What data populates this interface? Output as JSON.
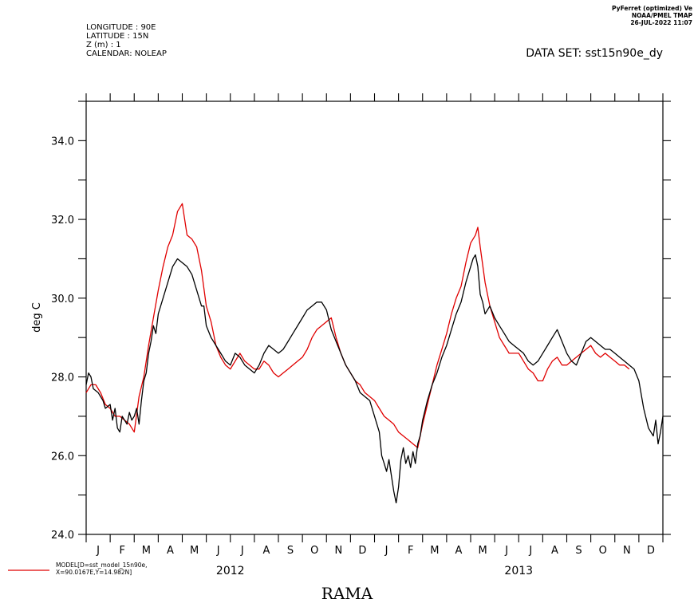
{
  "header": {
    "meta_lines": [
      "LONGITUDE : 90E",
      "LATITUDE : 15N",
      "Z (m) : 1",
      "CALENDAR: NOLEAP"
    ],
    "dataset": "DATA SET: sst15n90e_dy",
    "credit_lines": [
      "PyFerret (optimized) Ve",
      "NOAA/PMEL TMAP",
      "26-JUL-2022 11:07"
    ]
  },
  "chart_data": {
    "type": "line",
    "title": "RAMA",
    "ylabel": "deg C",
    "xlabel": "",
    "ylim": [
      24,
      35
    ],
    "yticks": [
      "24.0",
      "26.0",
      "28.0",
      "30.0",
      "32.0",
      "34.0"
    ],
    "xlim": [
      0,
      24
    ],
    "x_month_labels": [
      "J",
      "F",
      "M",
      "A",
      "M",
      "J",
      "J",
      "A",
      "S",
      "O",
      "N",
      "D",
      "J",
      "F",
      "M",
      "A",
      "M",
      "J",
      "J",
      "A",
      "S",
      "O",
      "N",
      "D"
    ],
    "x_year_labels": [
      {
        "label": "2012",
        "month_center": 6
      },
      {
        "label": "2013",
        "month_center": 18
      }
    ],
    "grid": false,
    "legend_position": "bottom-left",
    "series": [
      {
        "name": "",
        "color": "#000000",
        "points": [
          [
            0.0,
            27.8
          ],
          [
            0.1,
            28.1
          ],
          [
            0.2,
            28.0
          ],
          [
            0.3,
            27.7
          ],
          [
            0.5,
            27.6
          ],
          [
            0.7,
            27.4
          ],
          [
            0.8,
            27.2
          ],
          [
            1.0,
            27.3
          ],
          [
            1.1,
            26.9
          ],
          [
            1.2,
            27.2
          ],
          [
            1.3,
            26.7
          ],
          [
            1.4,
            26.6
          ],
          [
            1.5,
            27.0
          ],
          [
            1.7,
            26.8
          ],
          [
            1.8,
            27.1
          ],
          [
            1.9,
            26.9
          ],
          [
            2.0,
            27.0
          ],
          [
            2.1,
            27.2
          ],
          [
            2.2,
            26.8
          ],
          [
            2.3,
            27.4
          ],
          [
            2.4,
            27.9
          ],
          [
            2.5,
            28.1
          ],
          [
            2.6,
            28.6
          ],
          [
            2.7,
            28.9
          ],
          [
            2.8,
            29.3
          ],
          [
            2.9,
            29.1
          ],
          [
            3.0,
            29.6
          ],
          [
            3.1,
            29.8
          ],
          [
            3.2,
            30.0
          ],
          [
            3.4,
            30.4
          ],
          [
            3.5,
            30.6
          ],
          [
            3.6,
            30.8
          ],
          [
            3.8,
            31.0
          ],
          [
            4.0,
            30.9
          ],
          [
            4.2,
            30.8
          ],
          [
            4.4,
            30.6
          ],
          [
            4.5,
            30.4
          ],
          [
            4.6,
            30.2
          ],
          [
            4.7,
            30.0
          ],
          [
            4.8,
            29.8
          ],
          [
            4.9,
            29.8
          ],
          [
            5.0,
            29.3
          ],
          [
            5.2,
            29.0
          ],
          [
            5.4,
            28.8
          ],
          [
            5.6,
            28.6
          ],
          [
            5.8,
            28.4
          ],
          [
            6.0,
            28.3
          ],
          [
            6.2,
            28.6
          ],
          [
            6.4,
            28.5
          ],
          [
            6.6,
            28.3
          ],
          [
            6.8,
            28.2
          ],
          [
            7.0,
            28.1
          ],
          [
            7.2,
            28.3
          ],
          [
            7.4,
            28.6
          ],
          [
            7.6,
            28.8
          ],
          [
            7.8,
            28.7
          ],
          [
            8.0,
            28.6
          ],
          [
            8.2,
            28.7
          ],
          [
            8.4,
            28.9
          ],
          [
            8.6,
            29.1
          ],
          [
            8.8,
            29.3
          ],
          [
            9.0,
            29.5
          ],
          [
            9.2,
            29.7
          ],
          [
            9.4,
            29.8
          ],
          [
            9.6,
            29.9
          ],
          [
            9.8,
            29.9
          ],
          [
            10.0,
            29.7
          ],
          [
            10.2,
            29.2
          ],
          [
            10.4,
            28.9
          ],
          [
            10.6,
            28.6
          ],
          [
            10.8,
            28.3
          ],
          [
            11.0,
            28.1
          ],
          [
            11.2,
            27.9
          ],
          [
            11.4,
            27.6
          ],
          [
            11.6,
            27.5
          ],
          [
            11.8,
            27.4
          ],
          [
            12.0,
            27.0
          ],
          [
            12.2,
            26.6
          ],
          [
            12.3,
            26.0
          ],
          [
            12.4,
            25.8
          ],
          [
            12.5,
            25.6
          ],
          [
            12.6,
            25.9
          ],
          [
            12.7,
            25.5
          ],
          [
            12.8,
            25.1
          ],
          [
            12.9,
            24.8
          ],
          [
            13.0,
            25.2
          ],
          [
            13.1,
            25.9
          ],
          [
            13.2,
            26.2
          ],
          [
            13.3,
            25.8
          ],
          [
            13.4,
            26.0
          ],
          [
            13.5,
            25.7
          ],
          [
            13.6,
            26.1
          ],
          [
            13.7,
            25.8
          ],
          [
            13.8,
            26.3
          ],
          [
            13.9,
            26.5
          ],
          [
            14.0,
            26.9
          ],
          [
            14.2,
            27.4
          ],
          [
            14.4,
            27.8
          ],
          [
            14.6,
            28.1
          ],
          [
            14.8,
            28.5
          ],
          [
            15.0,
            28.8
          ],
          [
            15.2,
            29.2
          ],
          [
            15.4,
            29.6
          ],
          [
            15.6,
            29.9
          ],
          [
            15.8,
            30.4
          ],
          [
            16.0,
            30.8
          ],
          [
            16.1,
            31.0
          ],
          [
            16.2,
            31.1
          ],
          [
            16.3,
            30.8
          ],
          [
            16.4,
            30.1
          ],
          [
            16.5,
            29.9
          ],
          [
            16.6,
            29.6
          ],
          [
            16.8,
            29.8
          ],
          [
            17.0,
            29.5
          ],
          [
            17.2,
            29.3
          ],
          [
            17.4,
            29.1
          ],
          [
            17.6,
            28.9
          ],
          [
            17.8,
            28.8
          ],
          [
            18.0,
            28.7
          ],
          [
            18.2,
            28.6
          ],
          [
            18.4,
            28.4
          ],
          [
            18.6,
            28.3
          ],
          [
            18.8,
            28.4
          ],
          [
            19.0,
            28.6
          ],
          [
            19.2,
            28.8
          ],
          [
            19.4,
            29.0
          ],
          [
            19.6,
            29.2
          ],
          [
            19.8,
            28.9
          ],
          [
            20.0,
            28.6
          ],
          [
            20.2,
            28.4
          ],
          [
            20.4,
            28.3
          ],
          [
            20.6,
            28.6
          ],
          [
            20.8,
            28.9
          ],
          [
            21.0,
            29.0
          ],
          [
            21.2,
            28.9
          ],
          [
            21.4,
            28.8
          ],
          [
            21.6,
            28.7
          ],
          [
            21.8,
            28.7
          ],
          [
            22.0,
            28.6
          ],
          [
            22.2,
            28.5
          ],
          [
            22.4,
            28.4
          ],
          [
            22.6,
            28.3
          ],
          [
            22.8,
            28.2
          ],
          [
            23.0,
            27.9
          ],
          [
            23.2,
            27.2
          ],
          [
            23.4,
            26.7
          ],
          [
            23.6,
            26.5
          ],
          [
            23.7,
            26.9
          ],
          [
            23.8,
            26.3
          ],
          [
            23.9,
            26.6
          ],
          [
            24.0,
            27.0
          ]
        ]
      },
      {
        "name": "MODEL[D=sst_model_15n90e, X=90.0167E,Y=14.982N]",
        "color": "#e00000",
        "points": [
          [
            0.0,
            27.6
          ],
          [
            0.2,
            27.8
          ],
          [
            0.4,
            27.8
          ],
          [
            0.6,
            27.6
          ],
          [
            0.8,
            27.3
          ],
          [
            1.0,
            27.2
          ],
          [
            1.2,
            27.0
          ],
          [
            1.4,
            27.0
          ],
          [
            1.6,
            26.9
          ],
          [
            1.8,
            26.8
          ],
          [
            2.0,
            26.6
          ],
          [
            2.2,
            27.5
          ],
          [
            2.4,
            28.0
          ],
          [
            2.6,
            28.8
          ],
          [
            2.8,
            29.5
          ],
          [
            3.0,
            30.2
          ],
          [
            3.2,
            30.8
          ],
          [
            3.4,
            31.3
          ],
          [
            3.6,
            31.6
          ],
          [
            3.8,
            32.2
          ],
          [
            4.0,
            32.4
          ],
          [
            4.2,
            31.6
          ],
          [
            4.4,
            31.5
          ],
          [
            4.6,
            31.3
          ],
          [
            4.8,
            30.7
          ],
          [
            5.0,
            29.8
          ],
          [
            5.2,
            29.4
          ],
          [
            5.4,
            28.8
          ],
          [
            5.6,
            28.5
          ],
          [
            5.8,
            28.3
          ],
          [
            6.0,
            28.2
          ],
          [
            6.2,
            28.4
          ],
          [
            6.4,
            28.6
          ],
          [
            6.6,
            28.4
          ],
          [
            6.8,
            28.3
          ],
          [
            7.0,
            28.2
          ],
          [
            7.2,
            28.2
          ],
          [
            7.4,
            28.4
          ],
          [
            7.6,
            28.3
          ],
          [
            7.8,
            28.1
          ],
          [
            8.0,
            28.0
          ],
          [
            8.2,
            28.1
          ],
          [
            8.4,
            28.2
          ],
          [
            8.6,
            28.3
          ],
          [
            8.8,
            28.4
          ],
          [
            9.0,
            28.5
          ],
          [
            9.2,
            28.7
          ],
          [
            9.4,
            29.0
          ],
          [
            9.6,
            29.2
          ],
          [
            9.8,
            29.3
          ],
          [
            10.0,
            29.4
          ],
          [
            10.2,
            29.5
          ],
          [
            10.4,
            29.0
          ],
          [
            10.6,
            28.6
          ],
          [
            10.8,
            28.3
          ],
          [
            11.0,
            28.1
          ],
          [
            11.2,
            27.9
          ],
          [
            11.4,
            27.8
          ],
          [
            11.6,
            27.6
          ],
          [
            11.8,
            27.5
          ],
          [
            12.0,
            27.4
          ],
          [
            12.2,
            27.2
          ],
          [
            12.4,
            27.0
          ],
          [
            12.6,
            26.9
          ],
          [
            12.8,
            26.8
          ],
          [
            13.0,
            26.6
          ],
          [
            13.2,
            26.5
          ],
          [
            13.4,
            26.4
          ],
          [
            13.6,
            26.3
          ],
          [
            13.8,
            26.2
          ],
          [
            14.0,
            26.8
          ],
          [
            14.2,
            27.3
          ],
          [
            14.4,
            27.8
          ],
          [
            14.6,
            28.3
          ],
          [
            14.8,
            28.7
          ],
          [
            15.0,
            29.1
          ],
          [
            15.2,
            29.6
          ],
          [
            15.4,
            30.0
          ],
          [
            15.6,
            30.3
          ],
          [
            15.8,
            30.9
          ],
          [
            16.0,
            31.4
          ],
          [
            16.2,
            31.6
          ],
          [
            16.3,
            31.8
          ],
          [
            16.4,
            31.3
          ],
          [
            16.6,
            30.4
          ],
          [
            16.8,
            29.8
          ],
          [
            17.0,
            29.4
          ],
          [
            17.2,
            29.0
          ],
          [
            17.4,
            28.8
          ],
          [
            17.6,
            28.6
          ],
          [
            17.8,
            28.6
          ],
          [
            18.0,
            28.6
          ],
          [
            18.2,
            28.4
          ],
          [
            18.4,
            28.2
          ],
          [
            18.6,
            28.1
          ],
          [
            18.8,
            27.9
          ],
          [
            19.0,
            27.9
          ],
          [
            19.2,
            28.2
          ],
          [
            19.4,
            28.4
          ],
          [
            19.6,
            28.5
          ],
          [
            19.8,
            28.3
          ],
          [
            20.0,
            28.3
          ],
          [
            20.2,
            28.4
          ],
          [
            20.4,
            28.5
          ],
          [
            20.6,
            28.6
          ],
          [
            20.8,
            28.7
          ],
          [
            21.0,
            28.8
          ],
          [
            21.2,
            28.6
          ],
          [
            21.4,
            28.5
          ],
          [
            21.6,
            28.6
          ],
          [
            21.8,
            28.5
          ],
          [
            22.0,
            28.4
          ],
          [
            22.2,
            28.3
          ],
          [
            22.4,
            28.3
          ],
          [
            22.6,
            28.2
          ]
        ]
      }
    ]
  }
}
